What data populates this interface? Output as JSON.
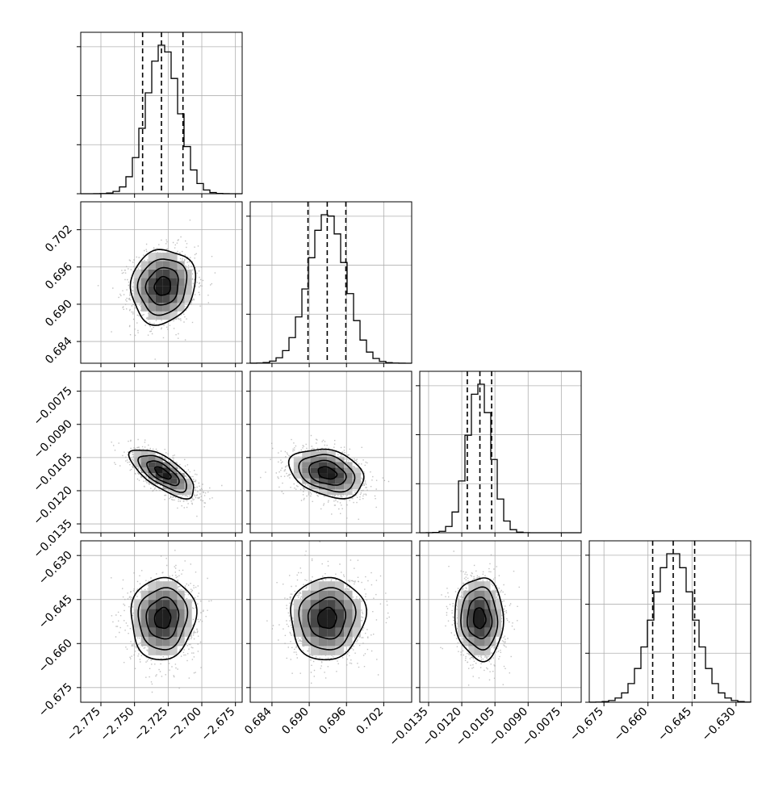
{
  "chart_data": {
    "type": "corner",
    "grid": true,
    "parameters": [
      {
        "range": [
          -2.79,
          -2.67
        ],
        "ticks": [
          -2.775,
          -2.75,
          -2.725,
          -2.7,
          -2.675
        ],
        "tick_labels": [
          "−2.775",
          "−2.750",
          "−2.725",
          "−2.700",
          "−2.675"
        ],
        "quantiles": [
          -2.744,
          -2.73,
          -2.714
        ],
        "mean": -2.729,
        "sd": 0.012
      },
      {
        "range": [
          0.6805,
          0.7065
        ],
        "ticks": [
          0.684,
          0.69,
          0.696,
          0.702
        ],
        "tick_labels": [
          "0.684",
          "0.690",
          "0.696",
          "0.702"
        ],
        "quantiles": [
          0.6898,
          0.6929,
          0.6959
        ],
        "mean": 0.6929,
        "sd": 0.003
      },
      {
        "range": [
          -0.0139,
          -0.0066
        ],
        "ticks": [
          -0.0135,
          -0.012,
          -0.0105,
          -0.009,
          -0.0075
        ],
        "tick_labels": [
          "−0.0135",
          "−0.0120",
          "−0.0105",
          "−0.0090",
          "−0.0075"
        ],
        "quantiles": [
          -0.01175,
          -0.01118,
          -0.01065
        ],
        "mean": -0.0112,
        "sd": 0.00055
      },
      {
        "range": [
          -0.68,
          -0.625
        ],
        "ticks": [
          -0.675,
          -0.66,
          -0.645,
          -0.63
        ],
        "tick_labels": [
          "−0.675",
          "−0.660",
          "−0.645",
          "−0.630"
        ],
        "quantiles": [
          -0.6584,
          -0.6514,
          -0.6441
        ],
        "mean": -0.6514,
        "sd": 0.007
      }
    ],
    "correlations": {
      "1,0": 0.1,
      "2,0": -0.7,
      "2,1": -0.3,
      "3,0": 0.05,
      "3,1": 0.05,
      "3,2": -0.05
    }
  },
  "colors": {
    "ink": "#000000",
    "grid": "#b0b0b0",
    "points": "#a8a8a8"
  }
}
